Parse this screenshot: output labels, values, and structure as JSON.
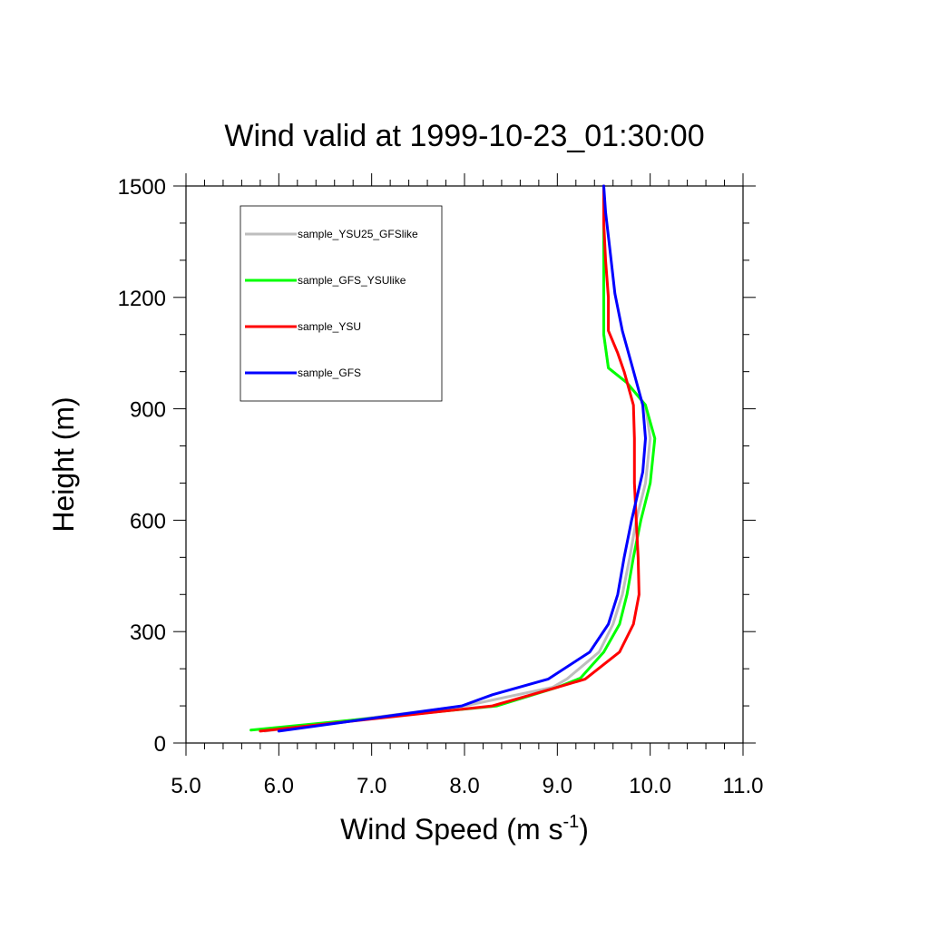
{
  "chart_data": {
    "type": "line",
    "title": "Wind valid at 1999-10-23_01:30:00",
    "xlabel": "Wind Speed (m s",
    "xlabel_superscript": "-1",
    "xlabel_suffix": ")",
    "ylabel": "Height (m)",
    "xlim": [
      5.0,
      11.0
    ],
    "ylim": [
      0,
      1500
    ],
    "xticks": [
      5.0,
      6.0,
      7.0,
      8.0,
      9.0,
      10.0,
      11.0
    ],
    "xtick_labels": [
      "5.0",
      "6.0",
      "7.0",
      "8.0",
      "9.0",
      "10.0",
      "11.0"
    ],
    "yticks": [
      0,
      300,
      600,
      900,
      1200,
      1500
    ],
    "ytick_labels": [
      "0",
      "300",
      "600",
      "900",
      "1200",
      "1500"
    ],
    "grid": false,
    "legend_position": "top-left",
    "series": [
      {
        "name": "sample_YSU25_GFSlike",
        "color": "#bebebe",
        "points": [
          [
            5.85,
            32
          ],
          [
            8.0,
            100
          ],
          [
            8.95,
            150
          ],
          [
            9.1,
            172
          ],
          [
            9.45,
            245
          ],
          [
            9.6,
            320
          ],
          [
            9.7,
            400
          ],
          [
            9.78,
            500
          ],
          [
            9.85,
            600
          ],
          [
            9.95,
            700
          ],
          [
            10.0,
            820
          ],
          [
            9.95,
            910
          ],
          [
            9.75,
            970
          ],
          [
            9.55,
            1010
          ],
          [
            9.5,
            1100
          ],
          [
            9.5,
            1200
          ],
          [
            9.5,
            1300
          ],
          [
            9.5,
            1400
          ],
          [
            9.5,
            1500
          ]
        ]
      },
      {
        "name": "sample_GFS_YSUlike",
        "color": "#00ff00",
        "points": [
          [
            5.7,
            35
          ],
          [
            8.35,
            100
          ],
          [
            9.0,
            150
          ],
          [
            9.25,
            175
          ],
          [
            9.5,
            245
          ],
          [
            9.67,
            320
          ],
          [
            9.75,
            400
          ],
          [
            9.82,
            500
          ],
          [
            9.9,
            600
          ],
          [
            10.0,
            700
          ],
          [
            10.05,
            820
          ],
          [
            9.95,
            910
          ],
          [
            9.75,
            970
          ],
          [
            9.55,
            1010
          ],
          [
            9.5,
            1100
          ],
          [
            9.5,
            1200
          ],
          [
            9.5,
            1300
          ],
          [
            9.5,
            1400
          ],
          [
            9.5,
            1500
          ]
        ]
      },
      {
        "name": "sample_YSU",
        "color": "#ff0000",
        "points": [
          [
            5.8,
            32
          ],
          [
            8.3,
            100
          ],
          [
            9.0,
            150
          ],
          [
            9.3,
            172
          ],
          [
            9.67,
            245
          ],
          [
            9.82,
            320
          ],
          [
            9.88,
            400
          ],
          [
            9.87,
            500
          ],
          [
            9.85,
            600
          ],
          [
            9.83,
            700
          ],
          [
            9.83,
            820
          ],
          [
            9.82,
            910
          ],
          [
            9.72,
            1000
          ],
          [
            9.65,
            1050
          ],
          [
            9.55,
            1110
          ],
          [
            9.55,
            1200
          ],
          [
            9.52,
            1300
          ],
          [
            9.5,
            1400
          ],
          [
            9.5,
            1500
          ]
        ]
      },
      {
        "name": "sample_GFS",
        "color": "#0000ff",
        "points": [
          [
            6.0,
            32
          ],
          [
            7.97,
            100
          ],
          [
            8.3,
            130
          ],
          [
            8.9,
            172
          ],
          [
            9.35,
            245
          ],
          [
            9.55,
            320
          ],
          [
            9.65,
            400
          ],
          [
            9.72,
            500
          ],
          [
            9.8,
            600
          ],
          [
            9.92,
            730
          ],
          [
            9.95,
            820
          ],
          [
            9.92,
            910
          ],
          [
            9.8,
            1020
          ],
          [
            9.7,
            1110
          ],
          [
            9.62,
            1210
          ],
          [
            9.57,
            1320
          ],
          [
            9.52,
            1430
          ],
          [
            9.5,
            1500
          ]
        ]
      }
    ]
  }
}
